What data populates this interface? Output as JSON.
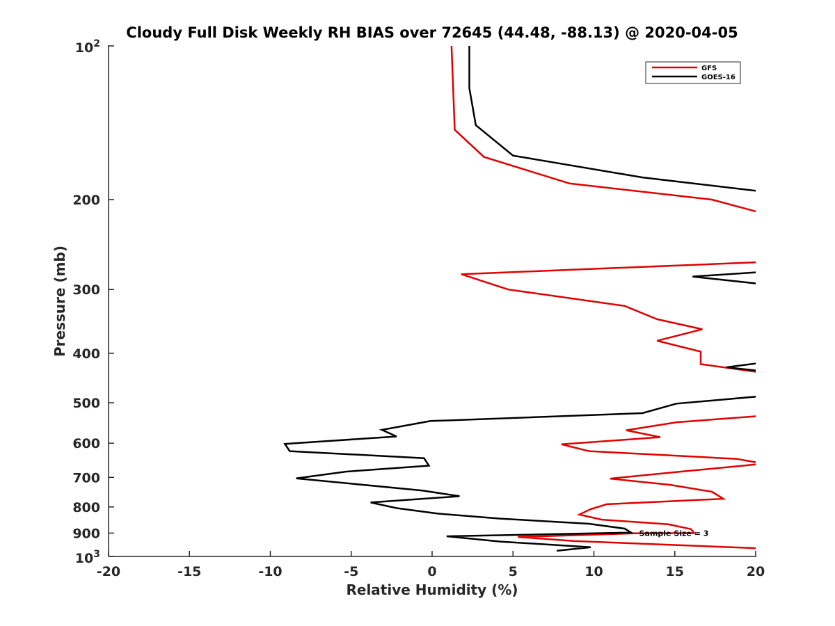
{
  "chart_data": {
    "type": "line",
    "title": "Cloudy Full Disk Weekly RH BIAS over 72645 (44.48, -88.13) @ 2020-04-05",
    "xlabel": "Relative Humidity (%)",
    "ylabel": "Pressure (mb)",
    "xlim": [
      -20,
      20
    ],
    "ylim": [
      100,
      1000
    ],
    "y_scale": "log",
    "y_reversed": true,
    "grid": false,
    "legend_position": "top-right",
    "x_ticks": [
      "-20",
      "-15",
      "-10",
      "-5",
      "0",
      "5",
      "10",
      "15",
      "20"
    ],
    "y_ticks": [
      {
        "value": 100,
        "base": "10",
        "exp": "2"
      },
      {
        "value": 200,
        "label": "200"
      },
      {
        "value": 300,
        "label": "300"
      },
      {
        "value": 400,
        "label": "400"
      },
      {
        "value": 500,
        "label": "500"
      },
      {
        "value": 600,
        "label": "600"
      },
      {
        "value": 700,
        "label": "700"
      },
      {
        "value": 800,
        "label": "800"
      },
      {
        "value": 900,
        "label": "900"
      },
      {
        "value": 1000,
        "base": "10",
        "exp": "3"
      }
    ],
    "series": [
      {
        "name": "GFS",
        "color": "#e00000",
        "points": [
          [
            1.2,
            100
          ],
          [
            1.4,
            146
          ],
          [
            3.2,
            165
          ],
          [
            8.5,
            186
          ],
          [
            17.3,
            200
          ],
          [
            20.5,
            213
          ],
          [
            null,
            null
          ],
          [
            20.5,
            265
          ],
          [
            1.8,
            280
          ],
          [
            4.7,
            300
          ],
          [
            11.9,
            323
          ],
          [
            13.9,
            343
          ],
          [
            16.7,
            359
          ],
          [
            13.9,
            378
          ],
          [
            16.6,
            397
          ],
          [
            16.6,
            420
          ],
          [
            20.5,
            437
          ],
          [
            null,
            null
          ],
          [
            20.5,
            530
          ],
          [
            15.1,
            546
          ],
          [
            12.0,
            566
          ],
          [
            14.1,
            584
          ],
          [
            8.0,
            603
          ],
          [
            9.7,
            622
          ],
          [
            18.8,
            644
          ],
          [
            20.5,
            658
          ],
          [
            15.0,
            684
          ],
          [
            11.0,
            704
          ],
          [
            14.7,
            724
          ],
          [
            17.3,
            747
          ],
          [
            18.0,
            771
          ],
          [
            10.8,
            790
          ],
          [
            9.8,
            808
          ],
          [
            9.1,
            828
          ],
          [
            10.5,
            847
          ],
          [
            14.6,
            865
          ],
          [
            16.0,
            884
          ],
          [
            16.2,
            900
          ],
          [
            12.5,
            901
          ],
          [
            5.3,
            916
          ],
          [
            8.8,
            933
          ],
          [
            20.5,
            965
          ]
        ]
      },
      {
        "name": "GOES-16",
        "color": "#000000",
        "points": [
          [
            2.3,
            100
          ],
          [
            2.3,
            121
          ],
          [
            2.7,
            143
          ],
          [
            5.0,
            164
          ],
          [
            13.0,
            181
          ],
          [
            20.5,
            193
          ],
          [
            null,
            null
          ],
          [
            20.5,
            277
          ],
          [
            16.1,
            283
          ],
          [
            20.5,
            293
          ],
          [
            null,
            null
          ],
          [
            20.5,
            417
          ],
          [
            18.2,
            426
          ],
          [
            20.5,
            434
          ],
          [
            null,
            null
          ],
          [
            20.5,
            485
          ],
          [
            15.1,
            502
          ],
          [
            13.0,
            524
          ],
          [
            -0.1,
            543
          ],
          [
            -3.1,
            565
          ],
          [
            -2.2,
            582
          ],
          [
            -9.1,
            602
          ],
          [
            -8.8,
            622
          ],
          [
            -0.5,
            642
          ],
          [
            -0.2,
            664
          ],
          [
            -5.3,
            682
          ],
          [
            -8.4,
            703
          ],
          [
            -0.6,
            743
          ],
          [
            1.7,
            762
          ],
          [
            -3.8,
            784
          ],
          [
            -2.2,
            804
          ],
          [
            0.3,
            824
          ],
          [
            4.2,
            843
          ],
          [
            9.7,
            863
          ],
          [
            11.9,
            882
          ],
          [
            12.3,
            898
          ],
          [
            0.9,
            913
          ],
          [
            4.2,
            935
          ],
          [
            9.8,
            959
          ],
          [
            7.7,
            975
          ]
        ]
      }
    ],
    "annotations": [
      {
        "text": "Sample Size = 3",
        "x": 12.8,
        "y": 900
      }
    ]
  }
}
